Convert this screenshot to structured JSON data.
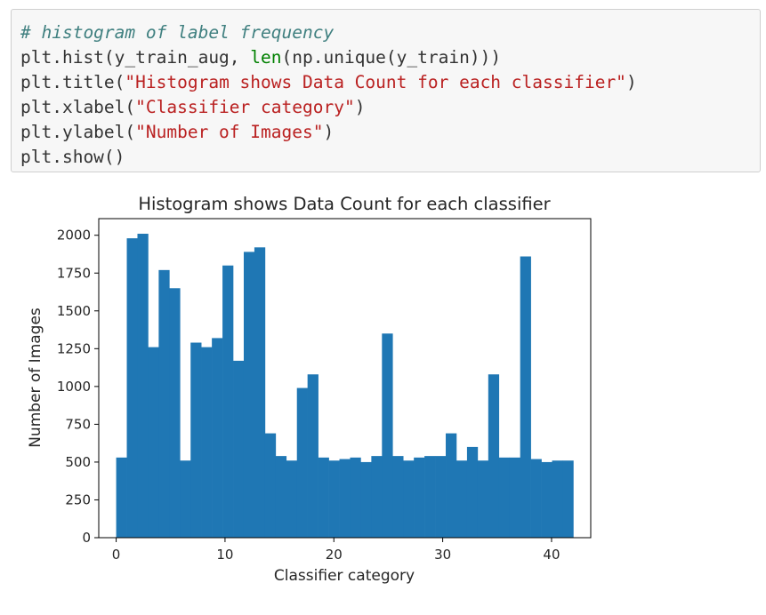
{
  "code_cell": {
    "lines": [
      [
        {
          "t": "comment",
          "v": "# histogram of label frequency"
        }
      ],
      [
        {
          "t": "plain",
          "v": "plt.hist(y_train_aug, "
        },
        {
          "t": "builtin",
          "v": "len"
        },
        {
          "t": "plain",
          "v": "(np.unique(y_train)))"
        }
      ],
      [
        {
          "t": "plain",
          "v": "plt.title("
        },
        {
          "t": "string",
          "v": "\"Histogram shows Data Count for each classifier\""
        },
        {
          "t": "plain",
          "v": ")"
        }
      ],
      [
        {
          "t": "plain",
          "v": "plt.xlabel("
        },
        {
          "t": "string",
          "v": "\"Classifier category\""
        },
        {
          "t": "plain",
          "v": ")"
        }
      ],
      [
        {
          "t": "plain",
          "v": "plt.ylabel("
        },
        {
          "t": "string",
          "v": "\"Number of Images\""
        },
        {
          "t": "plain",
          "v": ")"
        }
      ],
      [
        {
          "t": "plain",
          "v": "plt.show()"
        }
      ]
    ]
  },
  "chart_data": {
    "type": "bar",
    "title": "Histogram shows Data Count for each classifier",
    "xlabel": "Classifier category",
    "ylabel": "Number of Images",
    "xlim": [
      -1.6,
      43.6
    ],
    "ylim": [
      0,
      2110
    ],
    "xticks": [
      0,
      10,
      20,
      30,
      40
    ],
    "yticks": [
      0,
      250,
      500,
      750,
      1000,
      1250,
      1500,
      1750,
      2000
    ],
    "bin_start": 0,
    "bin_end": 42,
    "values": [
      530,
      1980,
      2010,
      1260,
      1770,
      1650,
      510,
      1290,
      1260,
      1320,
      1800,
      1170,
      1890,
      1920,
      690,
      540,
      510,
      990,
      1080,
      530,
      510,
      520,
      530,
      500,
      540,
      1350,
      540,
      510,
      530,
      540,
      540,
      690,
      510,
      600,
      510,
      1080,
      530,
      530,
      1860,
      520,
      500,
      510,
      510
    ],
    "bar_color": "#1f77b4",
    "grid": false,
    "legend": "none"
  }
}
